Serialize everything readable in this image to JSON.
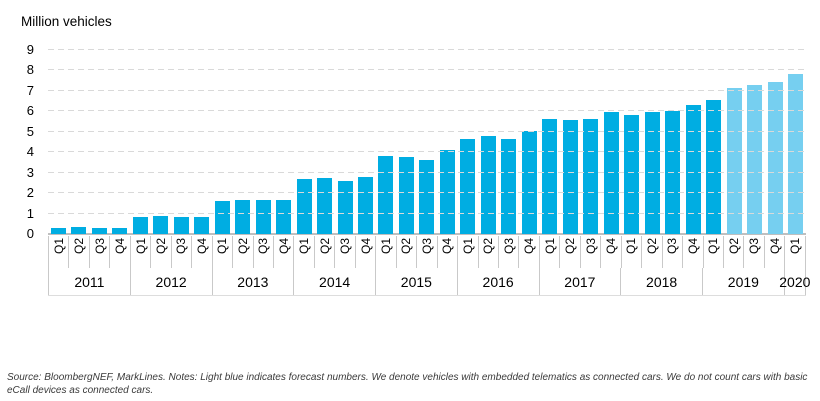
{
  "chart_data": {
    "type": "bar",
    "title": "Million vehicles",
    "xlabel": "",
    "ylabel": "Million vehicles",
    "ylim": [
      0,
      9
    ],
    "y_ticks": [
      9,
      8,
      7,
      6,
      5,
      4,
      3,
      2,
      1,
      0
    ],
    "grid": "horizontal-dashed",
    "legend": "none (light blue bars = forecast, per footnote)",
    "colors": {
      "actual_bar": "#00ADE2",
      "forecast_bar": "#76CFF0",
      "gridline": "#D9D9D9",
      "axis_line": "#BFBFBF",
      "tick_line": "#C9C9C9"
    },
    "years": [
      {
        "label": "2011",
        "quarter_count": 4
      },
      {
        "label": "2012",
        "quarter_count": 4
      },
      {
        "label": "2013",
        "quarter_count": 4
      },
      {
        "label": "2014",
        "quarter_count": 4
      },
      {
        "label": "2015",
        "quarter_count": 4
      },
      {
        "label": "2016",
        "quarter_count": 4
      },
      {
        "label": "2017",
        "quarter_count": 4
      },
      {
        "label": "2018",
        "quarter_count": 4
      },
      {
        "label": "2019",
        "quarter_count": 4
      },
      {
        "label": "2020",
        "quarter_count": 1
      }
    ],
    "points": [
      {
        "year": "2011",
        "quarter": "Q1",
        "value": 0.3,
        "forecast": false
      },
      {
        "year": "2011",
        "quarter": "Q2",
        "value": 0.32,
        "forecast": false
      },
      {
        "year": "2011",
        "quarter": "Q3",
        "value": 0.27,
        "forecast": false
      },
      {
        "year": "2011",
        "quarter": "Q4",
        "value": 0.3,
        "forecast": false
      },
      {
        "year": "2012",
        "quarter": "Q1",
        "value": 0.84,
        "forecast": false
      },
      {
        "year": "2012",
        "quarter": "Q2",
        "value": 0.86,
        "forecast": false
      },
      {
        "year": "2012",
        "quarter": "Q3",
        "value": 0.85,
        "forecast": false
      },
      {
        "year": "2012",
        "quarter": "Q4",
        "value": 0.84,
        "forecast": false
      },
      {
        "year": "2013",
        "quarter": "Q1",
        "value": 1.62,
        "forecast": false
      },
      {
        "year": "2013",
        "quarter": "Q2",
        "value": 1.68,
        "forecast": false
      },
      {
        "year": "2013",
        "quarter": "Q3",
        "value": 1.65,
        "forecast": false
      },
      {
        "year": "2013",
        "quarter": "Q4",
        "value": 1.64,
        "forecast": false
      },
      {
        "year": "2014",
        "quarter": "Q1",
        "value": 2.7,
        "forecast": false
      },
      {
        "year": "2014",
        "quarter": "Q2",
        "value": 2.74,
        "forecast": false
      },
      {
        "year": "2014",
        "quarter": "Q3",
        "value": 2.6,
        "forecast": false
      },
      {
        "year": "2014",
        "quarter": "Q4",
        "value": 2.77,
        "forecast": false
      },
      {
        "year": "2015",
        "quarter": "Q1",
        "value": 3.81,
        "forecast": false
      },
      {
        "year": "2015",
        "quarter": "Q2",
        "value": 3.76,
        "forecast": false
      },
      {
        "year": "2015",
        "quarter": "Q3",
        "value": 3.63,
        "forecast": false
      },
      {
        "year": "2015",
        "quarter": "Q4",
        "value": 4.09,
        "forecast": false
      },
      {
        "year": "2016",
        "quarter": "Q1",
        "value": 4.65,
        "forecast": false
      },
      {
        "year": "2016",
        "quarter": "Q2",
        "value": 4.81,
        "forecast": false
      },
      {
        "year": "2016",
        "quarter": "Q3",
        "value": 4.65,
        "forecast": false
      },
      {
        "year": "2016",
        "quarter": "Q4",
        "value": 5.06,
        "forecast": false
      },
      {
        "year": "2017",
        "quarter": "Q1",
        "value": 5.65,
        "forecast": false
      },
      {
        "year": "2017",
        "quarter": "Q2",
        "value": 5.58,
        "forecast": false
      },
      {
        "year": "2017",
        "quarter": "Q3",
        "value": 5.61,
        "forecast": false
      },
      {
        "year": "2017",
        "quarter": "Q4",
        "value": 5.97,
        "forecast": false
      },
      {
        "year": "2018",
        "quarter": "Q1",
        "value": 5.8,
        "forecast": false
      },
      {
        "year": "2018",
        "quarter": "Q2",
        "value": 5.95,
        "forecast": false
      },
      {
        "year": "2018",
        "quarter": "Q3",
        "value": 6.02,
        "forecast": false
      },
      {
        "year": "2018",
        "quarter": "Q4",
        "value": 6.33,
        "forecast": false
      },
      {
        "year": "2019",
        "quarter": "Q1",
        "value": 6.56,
        "forecast": false
      },
      {
        "year": "2019",
        "quarter": "Q2",
        "value": 7.13,
        "forecast": true
      },
      {
        "year": "2019",
        "quarter": "Q3",
        "value": 7.3,
        "forecast": true
      },
      {
        "year": "2019",
        "quarter": "Q4",
        "value": 7.46,
        "forecast": true
      },
      {
        "year": "2020",
        "quarter": "Q1",
        "value": 7.82,
        "forecast": true
      }
    ]
  },
  "footer": {
    "note": "Source: BloombergNEF, MarkLines. Notes: Light blue indicates forecast numbers. We denote vehicles with embedded telematics as connected cars. We do not count cars with basic eCall devices as connected cars."
  }
}
